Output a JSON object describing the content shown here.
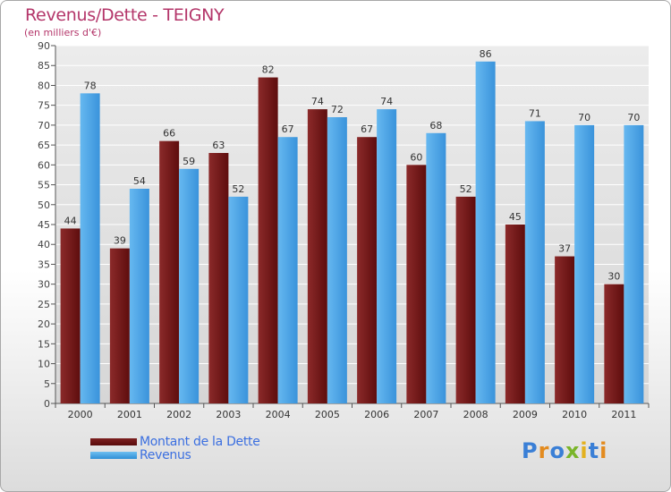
{
  "chart_data": {
    "type": "bar",
    "title": "Revenus/Dette - TEIGNY",
    "subtitle": "(en milliers d'€)",
    "categories": [
      "2000",
      "2001",
      "2002",
      "2003",
      "2004",
      "2005",
      "2006",
      "2007",
      "2008",
      "2009",
      "2010",
      "2011"
    ],
    "series": [
      {
        "name": "Montant de la Dette",
        "color": "#7a1c1c",
        "values": [
          44,
          39,
          66,
          63,
          82,
          74,
          67,
          60,
          52,
          45,
          37,
          30
        ]
      },
      {
        "name": "Revenus",
        "color": "#4aa3e6",
        "values": [
          78,
          54,
          59,
          52,
          67,
          72,
          74,
          68,
          86,
          71,
          70,
          70
        ]
      }
    ],
    "ylim": [
      0,
      90
    ],
    "yticks": [
      0,
      5,
      10,
      15,
      20,
      25,
      30,
      35,
      40,
      45,
      50,
      55,
      60,
      65,
      70,
      75,
      80,
      85,
      90
    ],
    "grid": true,
    "legend": "bottom-left"
  },
  "branding": {
    "logo_text": "Proxiti"
  },
  "colors": {
    "title": "#b4366a",
    "legend_text": "#3b6fe0"
  }
}
